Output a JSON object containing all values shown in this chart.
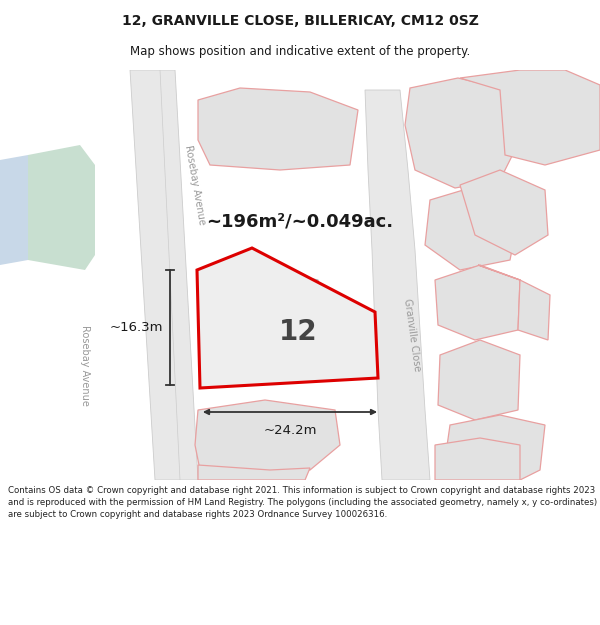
{
  "title": "12, GRANVILLE CLOSE, BILLERICAY, CM12 0SZ",
  "subtitle": "Map shows position and indicative extent of the property.",
  "footer_line1": "Contains OS data © Crown copyright and database right 2021. This information is subject to Crown copyright and database rights 2023 and is reproduced with the permission of",
  "footer_line2": "HM Land Registry. The polygons (including the associated geometry, namely x, y",
  "footer_line3": "co-ordinates) are subject to Crown copyright and database rights 2023 Ordnance Survey",
  "footer_line4": "100026316.",
  "footer_full": "Contains OS data © Crown copyright and database right 2021. This information is subject to Crown copyright and database rights 2023 and is reproduced with the permission of HM Land Registry. The polygons (including the associated geometry, namely x, y co-ordinates) are subject to Crown copyright and database rights 2023 Ordnance Survey 100026316.",
  "area_label": "~196m²/~0.049ac.",
  "number_label": "12",
  "width_label": "~24.2m",
  "height_label": "~16.3m",
  "road_label_rosebay_top": "Rosebay Avenue",
  "road_label_rosebay_left": "Rosebay Avenue",
  "road_label_granville": "Granville Close",
  "bg_color": "#ffffff",
  "map_bg": "#f5f5f5",
  "road_fill": "#e8e8e8",
  "road_edge": "#cccccc",
  "plot_fill": "#e2e2e2",
  "plot_edge_pink": "#e8a0a0",
  "highlight_edge": "#dd0000",
  "water_fill": "#c8dfd0",
  "blue_strip": "#c8d8e8",
  "street_color": "#999999",
  "dim_color": "#333333",
  "text_color": "#1a1a1a",
  "house_fill": "#d0d0d0",
  "house_edge": "#b0b0b0",
  "footer_color": "#222222"
}
